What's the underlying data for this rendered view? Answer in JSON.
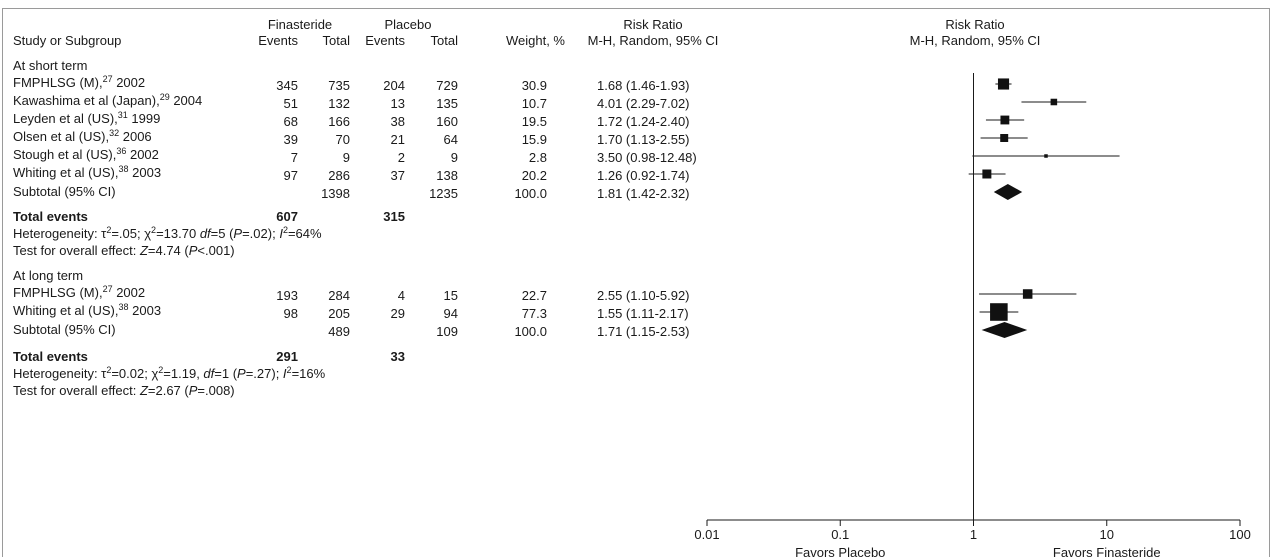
{
  "header": {
    "study_col": "Study or Subgroup",
    "group1": "Finasteride",
    "group2": "Placebo",
    "events": "Events",
    "total": "Total",
    "weight": "Weight, %",
    "rr_title": "Risk Ratio",
    "rr_method": "M-H, Random, 95% CI",
    "plot_title": "Risk Ratio",
    "plot_method": "M-H, Random, 95% CI"
  },
  "groups": [
    {
      "title": "At short term",
      "studies": [
        {
          "name": "FMPHLSG (M),",
          "ref": "27",
          "year": "2002",
          "e1": "345",
          "t1": "735",
          "e2": "204",
          "t2": "729",
          "w": "30.9",
          "rr": "1.68 (1.46-1.93)"
        },
        {
          "name": "Kawashima et al (Japan),",
          "ref": "29",
          "year": "2004",
          "e1": "51",
          "t1": "132",
          "e2": "13",
          "t2": "135",
          "w": "10.7",
          "rr": "4.01 (2.29-7.02)"
        },
        {
          "name": "Leyden et al (US),",
          "ref": "31",
          "year": "1999",
          "e1": "68",
          "t1": "166",
          "e2": "38",
          "t2": "160",
          "w": "19.5",
          "rr": "1.72 (1.24-2.40)"
        },
        {
          "name": "Olsen et al (US),",
          "ref": "32",
          "year": "2006",
          "e1": "39",
          "t1": "70",
          "e2": "21",
          "t2": "64",
          "w": "15.9",
          "rr": "1.70 (1.13-2.55)"
        },
        {
          "name": "Stough et al (US),",
          "ref": "36",
          "year": "2002",
          "e1": "7",
          "t1": "9",
          "e2": "2",
          "t2": "9",
          "w": "2.8",
          "rr": "3.50 (0.98-12.48)"
        },
        {
          "name": "Whiting et al (US),",
          "ref": "38",
          "year": "2003",
          "e1": "97",
          "t1": "286",
          "e2": "37",
          "t2": "138",
          "w": "20.2",
          "rr": "1.26 (0.92-1.74)"
        }
      ],
      "subtotal": {
        "label": "Subtotal (95% CI)",
        "t1": "1398",
        "t2": "1235",
        "w": "100.0",
        "rr": "1.81 (1.42-2.32)"
      },
      "total_events": {
        "label": "Total events",
        "e1": "607",
        "e2": "315"
      },
      "heterogeneity": {
        "label": "Heterogeneity: ",
        "tau": "τ",
        "tau_val": "=.05; ",
        "chi": "χ",
        "chi_val": "=13.70 ",
        "df": "df",
        "df_val": "=5 (",
        "p": "P",
        "p_val": "=.02); ",
        "i": "I",
        "i_val": "=64%"
      },
      "overall": {
        "label": "Test for overall effect: ",
        "z": "Z",
        "z_val": "=4.74 (",
        "p": "P",
        "p_val": "<.001)"
      }
    },
    {
      "title": "At long term",
      "studies": [
        {
          "name": "FMPHLSG (M),",
          "ref": "27",
          "year": "2002",
          "e1": "193",
          "t1": "284",
          "e2": "4",
          "t2": "15",
          "w": "22.7",
          "rr": "2.55 (1.10-5.92)"
        },
        {
          "name": "Whiting et al (US),",
          "ref": "38",
          "year": "2003",
          "e1": "98",
          "t1": "205",
          "e2": "29",
          "t2": "94",
          "w": "77.3",
          "rr": "1.55 (1.11-2.17)"
        }
      ],
      "subtotal": {
        "label": "Subtotal (95% CI)",
        "t1": "489",
        "t2": "109",
        "w": "100.0",
        "rr": "1.71 (1.15-2.53)"
      },
      "total_events": {
        "label": "Total events",
        "e1": "291",
        "e2": "33"
      },
      "heterogeneity": {
        "label": "Heterogeneity: ",
        "tau": "τ",
        "tau_val": "=0.02; ",
        "chi": "χ",
        "chi_val": "=1.19, ",
        "df": "df",
        "df_val": "=1 (",
        "p": "P",
        "p_val": "=.27); ",
        "i": "I",
        "i_val": "=16%"
      },
      "overall": {
        "label": "Test for overall effect: ",
        "z": "Z",
        "z_val": "=2.67 (",
        "p": "P",
        "p_val": "=.008)"
      }
    }
  ],
  "axis": {
    "ticks": [
      "0.01",
      "0.1",
      "1",
      "10",
      "100"
    ],
    "favors_left": "Favors  Placebo",
    "favors_right": "Favors Finasteride"
  },
  "chart_data": {
    "type": "forest",
    "scale": "log",
    "xlim": [
      0.01,
      100
    ],
    "reference_line": 1,
    "groups": [
      {
        "name": "At short term",
        "studies": [
          {
            "rr": 1.68,
            "lo": 1.46,
            "hi": 1.93,
            "weight": 30.9
          },
          {
            "rr": 4.01,
            "lo": 2.29,
            "hi": 7.02,
            "weight": 10.7
          },
          {
            "rr": 1.72,
            "lo": 1.24,
            "hi": 2.4,
            "weight": 19.5
          },
          {
            "rr": 1.7,
            "lo": 1.13,
            "hi": 2.55,
            "weight": 15.9
          },
          {
            "rr": 3.5,
            "lo": 0.98,
            "hi": 12.48,
            "weight": 2.8
          },
          {
            "rr": 1.26,
            "lo": 0.92,
            "hi": 1.74,
            "weight": 20.2
          }
        ],
        "subtotal": {
          "rr": 1.81,
          "lo": 1.42,
          "hi": 2.32
        }
      },
      {
        "name": "At long term",
        "studies": [
          {
            "rr": 2.55,
            "lo": 1.1,
            "hi": 5.92,
            "weight": 22.7
          },
          {
            "rr": 1.55,
            "lo": 1.11,
            "hi": 2.17,
            "weight": 77.3
          }
        ],
        "subtotal": {
          "rr": 1.71,
          "lo": 1.15,
          "hi": 2.53
        }
      }
    ]
  }
}
